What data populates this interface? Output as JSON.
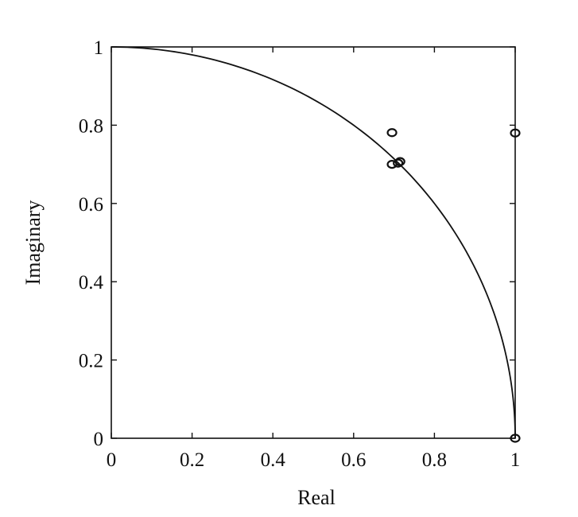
{
  "chart_data": {
    "type": "scatter",
    "xlabel": "Real",
    "ylabel": "Imaginary",
    "xlim": [
      0,
      1
    ],
    "ylim": [
      0,
      1
    ],
    "xticks": [
      0,
      0.2,
      0.4,
      0.6,
      0.8,
      1
    ],
    "xtick_labels": [
      "0",
      "0.2",
      "0.4",
      "0.6",
      "0.8",
      "1"
    ],
    "yticks": [
      0,
      0.2,
      0.4,
      0.6,
      0.8,
      1
    ],
    "ytick_labels": [
      "0",
      "0.2",
      "0.4",
      "0.6",
      "0.8",
      "1"
    ],
    "grid": false,
    "legend": "none",
    "curve": {
      "kind": "unit-circle-quadrant",
      "x": [
        0,
        0.05,
        0.1,
        0.2,
        0.3,
        0.4,
        0.5,
        0.6,
        0.707,
        0.8,
        0.866,
        0.9,
        0.95,
        0.98,
        1
      ],
      "y": [
        1,
        0.999,
        0.995,
        0.98,
        0.954,
        0.917,
        0.866,
        0.8,
        0.707,
        0.6,
        0.5,
        0.436,
        0.312,
        0.199,
        0
      ]
    },
    "points": [
      {
        "x": 0.695,
        "y": 0.781
      },
      {
        "x": 0.695,
        "y": 0.7
      },
      {
        "x": 0.71,
        "y": 0.703
      },
      {
        "x": 0.715,
        "y": 0.707
      },
      {
        "x": 1.0,
        "y": 0.78
      },
      {
        "x": 1.0,
        "y": 0.0
      }
    ],
    "colors": {
      "ink": "#111111",
      "background": "#ffffff"
    }
  }
}
